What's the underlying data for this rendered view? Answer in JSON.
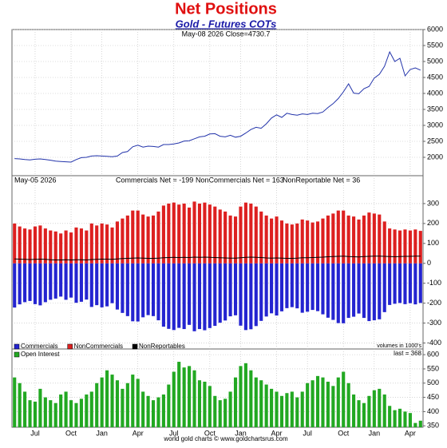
{
  "chart_data": [
    {
      "type": "line",
      "title": "Net Positions",
      "subtitle": "Gold - Futures COTs",
      "annotation": "May-08  2026   Close=4730.7",
      "series": [
        {
          "name": "Close",
          "color": "#2233aa",
          "values": [
            1960,
            1950,
            1930,
            1920,
            1940,
            1950,
            1930,
            1910,
            1880,
            1870,
            1860,
            1850,
            1930,
            1990,
            2000,
            2040,
            2050,
            2040,
            2030,
            2020,
            2040,
            2150,
            2180,
            2330,
            2380,
            2320,
            2350,
            2340,
            2320,
            2400,
            2400,
            2420,
            2450,
            2510,
            2520,
            2580,
            2640,
            2660,
            2730,
            2740,
            2660,
            2640,
            2690,
            2630,
            2660,
            2760,
            2870,
            2940,
            2910,
            3050,
            3230,
            3330,
            3250,
            3380,
            3340,
            3320,
            3360,
            3340,
            3380,
            3370,
            3420,
            3560,
            3680,
            3840,
            4050,
            4300,
            4010,
            3990,
            4150,
            4220,
            4480,
            4600,
            4850,
            5300,
            5000,
            5100,
            4550,
            4750,
            4800,
            4730
          ]
        }
      ],
      "ylim": [
        1425,
        6000
      ],
      "yticks": [
        2000,
        2500,
        3000,
        3500,
        4000,
        4500,
        5000,
        5500,
        6000
      ],
      "grid": true
    },
    {
      "type": "bar",
      "annotations": [
        "May-05  2026",
        "Commercials Net = -199",
        "NonCommercials Net = 163",
        "NonReportable Net = 36"
      ],
      "note": "volumes in 1000's",
      "series": [
        {
          "name": "Commercials",
          "color": "#2424d0",
          "values": [
            -222,
            -206,
            -195,
            -189,
            -205,
            -211,
            -195,
            -183,
            -177,
            -167,
            -183,
            -172,
            -198,
            -193,
            -182,
            -219,
            -210,
            -221,
            -216,
            -200,
            -232,
            -249,
            -265,
            -291,
            -292,
            -271,
            -260,
            -265,
            -286,
            -318,
            -329,
            -335,
            -324,
            -330,
            -309,
            -341,
            -330,
            -336,
            -325,
            -314,
            -298,
            -287,
            -266,
            -261,
            -313,
            -335,
            -331,
            -315,
            -289,
            -267,
            -251,
            -262,
            -241,
            -225,
            -220,
            -226,
            -248,
            -243,
            -234,
            -240,
            -256,
            -273,
            -284,
            -300,
            -301,
            -274,
            -268,
            -252,
            -274,
            -290,
            -286,
            -281,
            -245,
            -209,
            -203,
            -199,
            -205,
            -200,
            -206,
            -199
          ]
        },
        {
          "name": "NonCommercials",
          "color": "#dd2020",
          "values": [
            200,
            185,
            175,
            170,
            185,
            190,
            175,
            165,
            160,
            150,
            165,
            155,
            180,
            175,
            165,
            200,
            190,
            200,
            195,
            180,
            210,
            225,
            240,
            265,
            265,
            245,
            235,
            240,
            260,
            290,
            300,
            305,
            295,
            300,
            280,
            310,
            300,
            305,
            295,
            285,
            270,
            260,
            240,
            235,
            285,
            305,
            300,
            285,
            260,
            240,
            225,
            235,
            215,
            200,
            195,
            200,
            220,
            215,
            205,
            210,
            225,
            240,
            250,
            265,
            265,
            240,
            235,
            220,
            240,
            255,
            250,
            245,
            210,
            175,
            170,
            165,
            170,
            165,
            170,
            163
          ]
        },
        {
          "name": "NonReportables",
          "color": "#000000",
          "mark": "line",
          "values": [
            22,
            21,
            20,
            19,
            20,
            21,
            20,
            18,
            17,
            17,
            18,
            17,
            18,
            18,
            17,
            19,
            20,
            21,
            21,
            20,
            22,
            24,
            25,
            26,
            27,
            26,
            25,
            25,
            26,
            28,
            29,
            30,
            29,
            30,
            29,
            31,
            30,
            31,
            30,
            29,
            28,
            27,
            26,
            26,
            28,
            30,
            31,
            30,
            29,
            27,
            26,
            27,
            26,
            25,
            25,
            26,
            28,
            28,
            29,
            30,
            31,
            33,
            34,
            35,
            36,
            34,
            33,
            32,
            34,
            35,
            36,
            36,
            35,
            34,
            33,
            34,
            35,
            35,
            36,
            36
          ]
        }
      ],
      "ylim": [
        -430,
        440
      ],
      "yticks": [
        -400,
        -300,
        -200,
        -100,
        0,
        100,
        200,
        300
      ],
      "grid": true
    },
    {
      "type": "bar",
      "annotation": "last = 368",
      "footer": "world gold charts © www.goldchartsrus.com",
      "categories": [
        null,
        null,
        null,
        null,
        "Jul",
        null,
        null,
        null,
        null,
        null,
        null,
        "Oct",
        null,
        null,
        null,
        null,
        null,
        "Jan",
        null,
        null,
        null,
        null,
        null,
        null,
        "Apr",
        null,
        null,
        null,
        null,
        null,
        null,
        "Jul",
        null,
        null,
        null,
        null,
        null,
        null,
        "Oct",
        null,
        null,
        null,
        null,
        null,
        "Jan",
        null,
        null,
        null,
        null,
        null,
        null,
        "Apr",
        null,
        null,
        null,
        null,
        null,
        "Jul",
        null,
        null,
        null,
        null,
        null,
        null,
        "Oct",
        null,
        null,
        null,
        null,
        null,
        "Jan",
        null,
        null,
        null,
        null,
        null,
        null,
        "Apr",
        null,
        null
      ],
      "series": [
        {
          "name": "Open Interest",
          "color": "#22a822",
          "values": [
            520,
            500,
            470,
            440,
            435,
            480,
            450,
            440,
            430,
            460,
            470,
            440,
            430,
            445,
            460,
            470,
            500,
            520,
            545,
            530,
            510,
            480,
            500,
            530,
            515,
            470,
            455,
            440,
            450,
            460,
            495,
            540,
            575,
            555,
            560,
            545,
            510,
            505,
            490,
            455,
            440,
            445,
            470,
            520,
            560,
            570,
            545,
            520,
            510,
            495,
            480,
            470,
            455,
            465,
            470,
            450,
            470,
            500,
            510,
            525,
            520,
            505,
            490,
            520,
            540,
            500,
            460,
            440,
            430,
            455,
            475,
            480,
            460,
            420,
            405,
            410,
            400,
            395,
            360,
            368
          ]
        }
      ],
      "ylim": [
        345,
        620
      ],
      "yticks": [
        350,
        400,
        450,
        500,
        550,
        600
      ],
      "grid": true
    }
  ]
}
